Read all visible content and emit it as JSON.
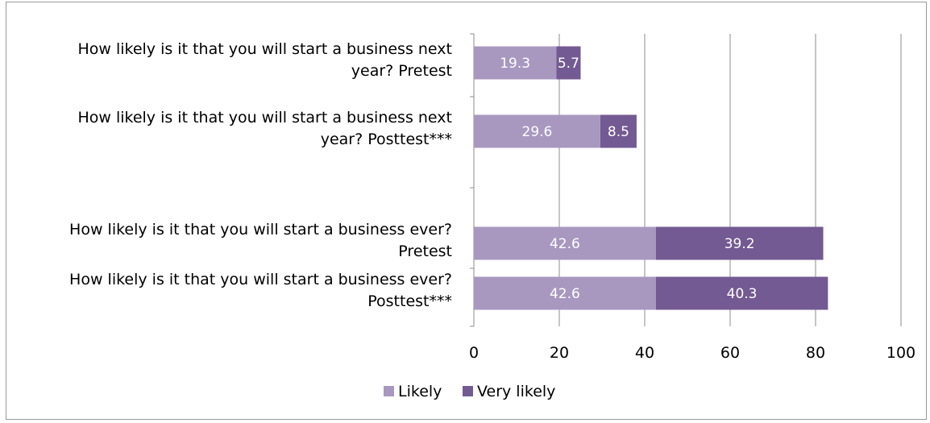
{
  "chart_data": {
    "type": "bar",
    "orientation": "horizontal",
    "stacked": true,
    "categories": [
      [
        "How likely is it that you will start a business next",
        "year? Pretest"
      ],
      [
        "How likely is it that you will start a business next",
        "year? Posttest***"
      ],
      [
        "How likely is it that you will start a business ever?",
        "Pretest"
      ],
      [
        "How likely is it that you will start a business ever?",
        "Posttest***"
      ]
    ],
    "series": [
      {
        "name": "Likely",
        "color": "#a898c0",
        "values": [
          19.3,
          29.6,
          42.6,
          42.6
        ],
        "labels": [
          "19.3",
          "29.6",
          "42.6",
          "42.6"
        ]
      },
      {
        "name": "Very likely",
        "color": "#735a92",
        "values": [
          5.7,
          8.5,
          39.2,
          40.3
        ],
        "labels": [
          "5.7",
          "8.5",
          "39.2",
          "40.3"
        ]
      }
    ],
    "xlim": [
      0,
      100
    ],
    "xticks": [
      "0",
      "20",
      "40",
      "60",
      "80",
      "100"
    ],
    "grid": true,
    "legend_position": "bottom"
  }
}
